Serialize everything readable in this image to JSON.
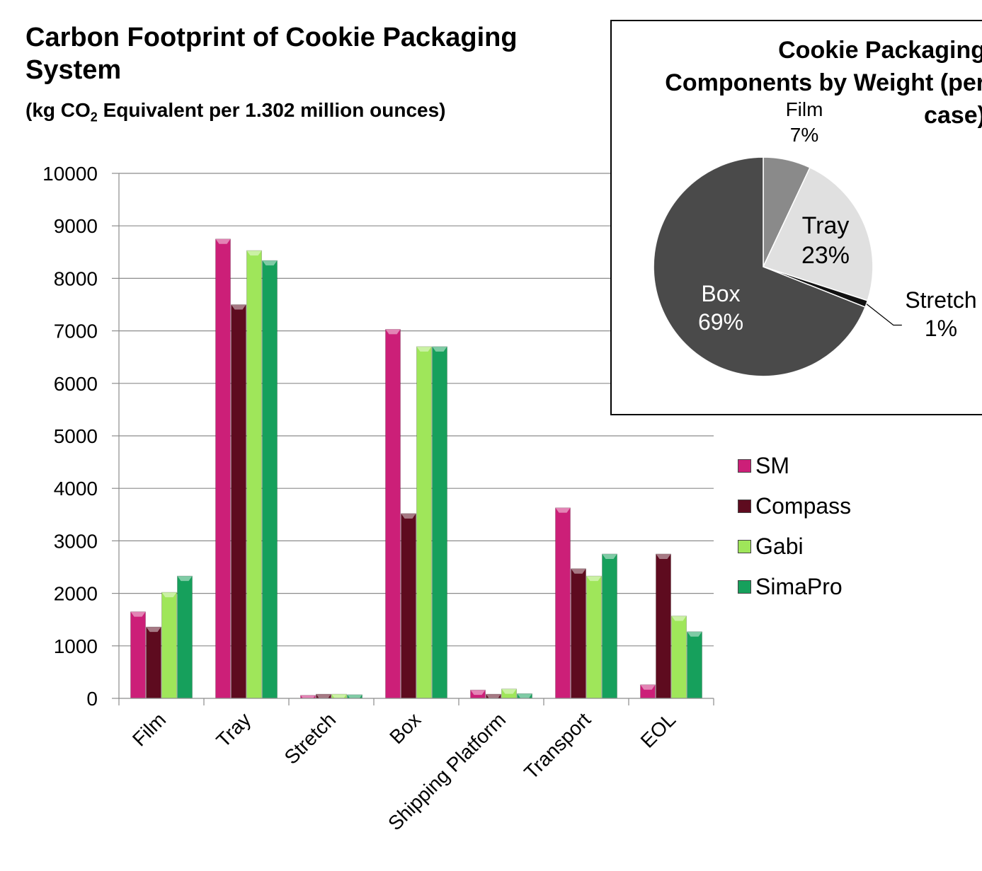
{
  "header": {
    "title": "Carbon Footprint of Cookie Packaging System",
    "subtitle_prefix": "(kg CO",
    "subtitle_sub": "2",
    "subtitle_suffix": " Equivalent per 1.302 million ounces)"
  },
  "colors": {
    "SM": "#cc1f78",
    "Compass": "#5e0b1f",
    "Gabi": "#9fe65a",
    "SimaPro": "#16a05c",
    "pie_box": "#4a4a4a",
    "pie_tray": "#e0e0e0",
    "pie_film": "#8a8a8a",
    "pie_stretch": "#111111"
  },
  "chart_data": [
    {
      "type": "bar",
      "title": "Carbon Footprint of Cookie Packaging System",
      "ylabel": "",
      "xlabel": "",
      "categories": [
        "Film",
        "Tray",
        "Stretch",
        "Box",
        "Shipping Platform",
        "Transport",
        "EOL"
      ],
      "ylim": [
        0,
        10000
      ],
      "yticks": [
        "0",
        "1000",
        "2000",
        "3000",
        "4000",
        "5000",
        "6000",
        "7000",
        "8000",
        "9000",
        "10000"
      ],
      "grid": true,
      "legend_position": "right",
      "series": [
        {
          "name": "SM",
          "values": [
            1650,
            8750,
            60,
            7030,
            160,
            3630,
            260
          ]
        },
        {
          "name": "Compass",
          "values": [
            1360,
            7500,
            80,
            3520,
            80,
            2470,
            2750
          ]
        },
        {
          "name": "Gabi",
          "values": [
            2020,
            8530,
            80,
            6700,
            180,
            2330,
            1570
          ]
        },
        {
          "name": "SimaPro",
          "values": [
            2330,
            8340,
            70,
            6700,
            90,
            2750,
            1270
          ]
        }
      ]
    },
    {
      "type": "pie",
      "title": "Cookie Packaging Components by Weight (per case)",
      "slices": [
        {
          "label": "Film",
          "value": 7,
          "text": "7%"
        },
        {
          "label": "Tray",
          "value": 23,
          "text": "23%"
        },
        {
          "label": "Stretch",
          "value": 1,
          "text": "1%"
        },
        {
          "label": "Box",
          "value": 69,
          "text": "69%"
        }
      ]
    }
  ]
}
